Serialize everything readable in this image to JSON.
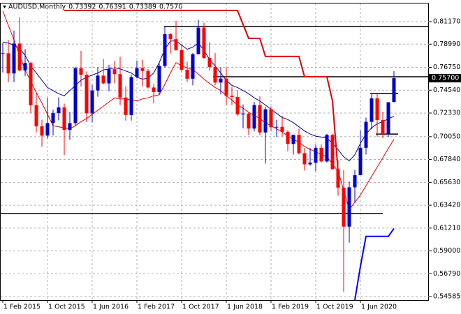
{
  "chart_data": {
    "type": "candlestick",
    "title": "AUDUSD,Monthly",
    "header_values": [
      {
        "value": 0.73392,
        "label": "0.73392"
      },
      {
        "value": 0.76391,
        "label": "0.76391"
      },
      {
        "value": 0.73389,
        "label": "0.73389"
      },
      {
        "value": 0.757,
        "label": "0.7570"
      }
    ],
    "categories": [
      "1 Feb 2015",
      null,
      null,
      null,
      null,
      null,
      null,
      null,
      "1 Oct 2015",
      null,
      null,
      null,
      null,
      null,
      null,
      null,
      "1 Jun 2016",
      null,
      null,
      null,
      null,
      null,
      null,
      null,
      "1 Feb 2017",
      null,
      null,
      null,
      null,
      null,
      null,
      null,
      "1 Oct 2017",
      null,
      null,
      null,
      null,
      null,
      null,
      null,
      "1 Jun 2018",
      null,
      null,
      null,
      null,
      null,
      null,
      null,
      "1 Feb 2019",
      null,
      null,
      null,
      null,
      null,
      null,
      null,
      "1 Oct 2019",
      null,
      null,
      null,
      null,
      null,
      null,
      null,
      "1 Jun 2020",
      null,
      null,
      null,
      null,
      null,
      null
    ],
    "open": [
      0.781,
      0.7811,
      0.7616,
      0.7905,
      0.7645,
      0.7717,
      0.7308,
      0.7104,
      0.7015,
      0.7136,
      0.7232,
      0.7288,
      0.707,
      0.7135,
      0.7667,
      0.7603,
      0.723,
      0.7451,
      0.7595,
      0.752,
      0.7657,
      0.7609,
      0.7383,
      0.7213,
      0.7581,
      0.7668,
      0.764,
      0.748,
      0.7435,
      0.7688,
      0.7995,
      0.7947,
      0.7842,
      0.7652,
      0.7565,
      0.7802,
      0.8059,
      0.7765,
      0.7677,
      0.7528,
      0.7566,
      0.74,
      0.7389,
      0.722,
      0.7228,
      0.7083,
      0.731,
      0.7045,
      0.727,
      0.7096,
      0.71,
      0.7052,
      0.6934,
      0.7022,
      0.6845,
      0.6737,
      0.6753,
      0.6897,
      0.6765,
      0.7021,
      0.669,
      0.6512,
      0.6135,
      0.6515,
      0.6632,
      0.6897,
      0.7148,
      0.7375,
      0.7165,
      0.703,
      0.73392
    ],
    "high": [
      0.7912,
      0.794,
      0.803,
      0.816,
      0.785,
      0.7728,
      0.7438,
      0.7168,
      0.7382,
      0.7266,
      0.7385,
      0.7324,
      0.7242,
      0.768,
      0.7835,
      0.7635,
      0.7505,
      0.7676,
      0.7758,
      0.7699,
      0.7734,
      0.7778,
      0.7493,
      0.7607,
      0.774,
      0.7749,
      0.7657,
      0.7515,
      0.7713,
      0.8066,
      0.8007,
      0.8125,
      0.7897,
      0.773,
      0.7814,
      0.8135,
      0.8105,
      0.7917,
      0.7813,
      0.7677,
      0.7677,
      0.7484,
      0.7453,
      0.7316,
      0.7238,
      0.734,
      0.7394,
      0.7295,
      0.7296,
      0.7168,
      0.7206,
      0.7069,
      0.7025,
      0.7082,
      0.6895,
      0.6895,
      0.693,
      0.6929,
      0.7032,
      0.7031,
      0.6775,
      0.6685,
      0.657,
      0.6684,
      0.7064,
      0.7189,
      0.7414,
      0.7414,
      0.7243,
      0.734,
      0.76391
    ],
    "low": [
      0.7625,
      0.7533,
      0.7532,
      0.7636,
      0.7592,
      0.7234,
      0.7044,
      0.6908,
      0.6986,
      0.7016,
      0.7162,
      0.6827,
      0.6973,
      0.7107,
      0.749,
      0.7145,
      0.7143,
      0.7391,
      0.7509,
      0.7442,
      0.7521,
      0.731,
      0.716,
      0.716,
      0.7568,
      0.7491,
      0.747,
      0.7328,
      0.7415,
      0.7673,
      0.7808,
      0.7835,
      0.7626,
      0.7533,
      0.7501,
      0.7802,
      0.7758,
      0.7643,
      0.75,
      0.7413,
      0.731,
      0.731,
      0.7202,
      0.7085,
      0.702,
      0.7055,
      0.7017,
      0.6745,
      0.7055,
      0.7003,
      0.7006,
      0.6864,
      0.6832,
      0.6832,
      0.6677,
      0.6724,
      0.6671,
      0.6754,
      0.6755,
      0.6685,
      0.6434,
      0.5506,
      0.598,
      0.6372,
      0.6645,
      0.6832,
      0.7076,
      0.7005,
      0.6991,
      0.7,
      0.73389
    ],
    "close": [
      0.7811,
      0.7616,
      0.7905,
      0.7645,
      0.7717,
      0.7308,
      0.7104,
      0.7015,
      0.7136,
      0.7232,
      0.7288,
      0.707,
      0.7135,
      0.7667,
      0.7603,
      0.723,
      0.7451,
      0.7595,
      0.752,
      0.7657,
      0.7609,
      0.7383,
      0.7213,
      0.7581,
      0.7668,
      0.764,
      0.748,
      0.7435,
      0.7688,
      0.7995,
      0.7947,
      0.7842,
      0.7652,
      0.7565,
      0.7802,
      0.8059,
      0.7765,
      0.7677,
      0.7528,
      0.7566,
      0.74,
      0.7389,
      0.722,
      0.7228,
      0.7083,
      0.731,
      0.7045,
      0.727,
      0.7096,
      0.71,
      0.7052,
      0.6934,
      0.7022,
      0.6845,
      0.6737,
      0.6753,
      0.6897,
      0.6765,
      0.7021,
      0.669,
      0.6512,
      0.6135,
      0.6515,
      0.6632,
      0.6897,
      0.7148,
      0.7375,
      0.7165,
      0.703,
      0.7337,
      0.757
    ],
    "up_color": "#0000cd",
    "down_color": "#ff0000",
    "lines": [
      {
        "color": "#00008b",
        "width": 1,
        "values": [
          0.792,
          0.791,
          0.789,
          0.786,
          0.779,
          0.769,
          0.762,
          0.755,
          0.748,
          0.745,
          0.742,
          0.74,
          0.745,
          0.75,
          0.755,
          0.758,
          0.76,
          0.762,
          0.765,
          0.766,
          0.767,
          0.766,
          0.764,
          0.762,
          0.758,
          0.756,
          0.757,
          0.762,
          0.772,
          0.785,
          0.793,
          0.793,
          0.789,
          0.785,
          0.787,
          0.791,
          0.784,
          0.775,
          0.769,
          0.762,
          0.755,
          0.75,
          0.748,
          0.745,
          0.742,
          0.738,
          0.735,
          0.731,
          0.727,
          0.723,
          0.719,
          0.717,
          0.714,
          0.71,
          0.706,
          0.703,
          0.701,
          0.7,
          0.699,
          0.694,
          0.688,
          0.681,
          0.677,
          0.683,
          0.694,
          0.703,
          0.709,
          0.713,
          0.715,
          0.718,
          0.72
        ]
      },
      {
        "color": "#e00000",
        "width": 1,
        "values": [
          0.822,
          0.808,
          0.794,
          0.779,
          0.765,
          0.754,
          0.743,
          0.733,
          0.722,
          0.711,
          0.71,
          0.709,
          0.708,
          0.711,
          0.715,
          0.718,
          0.722,
          0.726,
          0.73,
          0.734,
          0.738,
          0.737,
          0.737,
          0.736,
          0.735,
          0.737,
          0.738,
          0.74,
          0.741,
          0.751,
          0.762,
          0.772,
          0.769,
          0.767,
          0.765,
          0.761,
          0.756,
          0.752,
          0.748,
          0.745,
          0.74,
          0.736,
          0.731,
          0.728,
          0.724,
          0.721,
          0.718,
          0.714,
          0.711,
          0.708,
          0.705,
          0.701,
          0.698,
          0.695,
          0.691,
          0.688,
          0.686,
          0.683,
          0.681,
          0.674,
          0.667,
          0.649,
          0.63,
          0.637,
          0.644,
          0.653,
          0.662,
          0.671,
          0.68,
          0.689,
          0.698
        ]
      },
      {
        "color": "#e00000",
        "width": 2,
        "values": [
          null,
          null,
          null,
          null,
          null,
          null,
          null,
          null,
          null,
          null,
          null,
          0.8225,
          0.8225,
          0.8225,
          0.8225,
          0.8225,
          0.8225,
          0.8225,
          0.8225,
          0.8225,
          0.8225,
          0.8225,
          0.8225,
          0.8225,
          0.8225,
          0.8225,
          0.8225,
          0.8225,
          0.8225,
          0.8225,
          0.8225,
          0.8225,
          0.8225,
          0.8225,
          0.8225,
          0.8225,
          0.8225,
          0.8225,
          0.8225,
          0.8225,
          0.8225,
          0.8225,
          0.8225,
          0.809,
          0.7955,
          0.7955,
          0.7955,
          0.778,
          0.778,
          0.778,
          0.778,
          0.778,
          0.778,
          0.778,
          0.7584,
          0.7584,
          0.7584,
          0.7584,
          0.7584,
          0.735,
          0.667,
          null,
          null,
          null,
          null,
          null,
          null,
          null,
          null,
          null,
          null
        ]
      },
      {
        "color": "#0000ff",
        "width": 2,
        "values": [
          null,
          null,
          null,
          null,
          null,
          null,
          null,
          null,
          null,
          null,
          null,
          null,
          null,
          null,
          null,
          null,
          null,
          null,
          null,
          null,
          null,
          null,
          null,
          null,
          null,
          null,
          null,
          null,
          null,
          null,
          null,
          null,
          null,
          null,
          null,
          null,
          null,
          null,
          null,
          null,
          null,
          null,
          null,
          null,
          null,
          null,
          null,
          null,
          null,
          null,
          null,
          null,
          null,
          null,
          null,
          null,
          null,
          null,
          null,
          null,
          null,
          null,
          null,
          0.5425,
          0.575,
          0.604,
          0.604,
          0.604,
          0.604,
          0.604,
          0.6117
        ]
      }
    ],
    "levels": [
      0.807,
      0.7584,
      0.6261,
      0.742,
      0.703
    ],
    "last_price": {
      "value": 0.757,
      "label": "0.75700"
    },
    "ylim": [
      0.5425,
      0.8299
    ],
    "yticks": [
      {
        "value": 0.8117,
        "label": "0.81170"
      },
      {
        "value": 0.7899,
        "label": "0.78990"
      },
      {
        "value": 0.7675,
        "label": "0.76750"
      },
      {
        "value": 0.7454,
        "label": "0.74540"
      },
      {
        "value": 0.7233,
        "label": "0.72330"
      },
      {
        "value": 0.7005,
        "label": "0.70050"
      },
      {
        "value": 0.6784,
        "label": "0.67840"
      },
      {
        "value": 0.6563,
        "label": "0.65630"
      },
      {
        "value": 0.6342,
        "label": "0.63420"
      },
      {
        "value": 0.6121,
        "label": "0.61210"
      },
      {
        "value": 0.59,
        "label": "0.59000"
      },
      {
        "value": 0.5679,
        "label": "0.56790"
      },
      {
        "value": 0.54585,
        "label": "0.54585"
      }
    ],
    "grid": true
  }
}
